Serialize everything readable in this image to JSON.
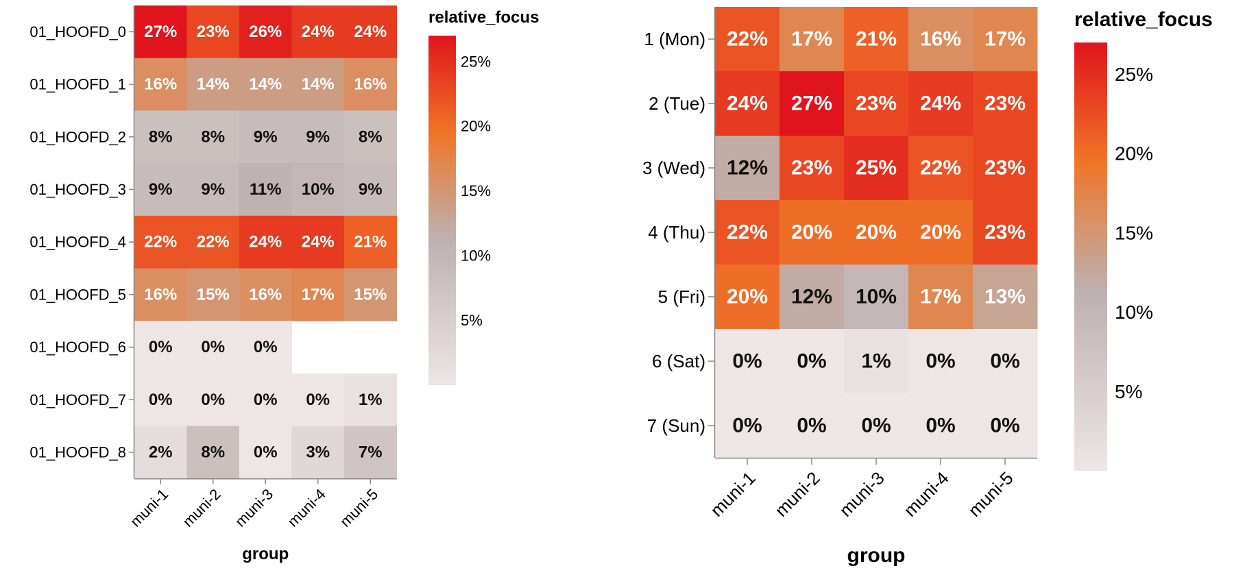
{
  "chart_data": [
    {
      "type": "heatmap",
      "xlabel": "group",
      "ylabel": "",
      "x_categories": [
        "muni-1",
        "muni-2",
        "muni-3",
        "muni-4",
        "muni-5"
      ],
      "y_categories": [
        "01_HOOFD_0",
        "01_HOOFD_1",
        "01_HOOFD_2",
        "01_HOOFD_3",
        "01_HOOFD_4",
        "01_HOOFD_5",
        "01_HOOFD_6",
        "01_HOOFD_7",
        "01_HOOFD_8"
      ],
      "values": [
        [
          27,
          23,
          26,
          24,
          24
        ],
        [
          16,
          14,
          14,
          14,
          16
        ],
        [
          8,
          8,
          9,
          9,
          8
        ],
        [
          9,
          9,
          11,
          10,
          9
        ],
        [
          22,
          22,
          24,
          24,
          21
        ],
        [
          16,
          15,
          16,
          17,
          15
        ],
        [
          0,
          0,
          0,
          null,
          null
        ],
        [
          0,
          0,
          0,
          0,
          1
        ],
        [
          2,
          8,
          0,
          3,
          7
        ]
      ],
      "value_format": "percent",
      "legend": {
        "title": "relative_focus",
        "ticks": [
          "5%",
          "10%",
          "15%",
          "20%",
          "25%"
        ],
        "tick_values": [
          5,
          10,
          15,
          20,
          25
        ],
        "domain": [
          0,
          27
        ],
        "placement": "right"
      },
      "colors": {
        "low": "#ede6e4",
        "mid": "#bcb1b0",
        "high_mid": "#f07528",
        "high": "#e0141c"
      }
    },
    {
      "type": "heatmap",
      "xlabel": "group",
      "ylabel": "",
      "x_categories": [
        "muni-1",
        "muni-2",
        "muni-3",
        "muni-4",
        "muni-5"
      ],
      "y_categories": [
        "1 (Mon)",
        "2 (Tue)",
        "3 (Wed)",
        "4 (Thu)",
        "5 (Fri)",
        "6 (Sat)",
        "7 (Sun)"
      ],
      "values": [
        [
          22,
          17,
          21,
          16,
          17
        ],
        [
          24,
          27,
          23,
          24,
          23
        ],
        [
          12,
          23,
          25,
          22,
          23
        ],
        [
          22,
          20,
          20,
          20,
          23
        ],
        [
          20,
          12,
          10,
          17,
          13
        ],
        [
          0,
          0,
          1,
          0,
          0
        ],
        [
          0,
          0,
          0,
          0,
          0
        ]
      ],
      "value_format": "percent",
      "legend": {
        "title": "relative_focus",
        "ticks": [
          "5%",
          "10%",
          "15%",
          "20%",
          "25%"
        ],
        "tick_values": [
          5,
          10,
          15,
          20,
          25
        ],
        "domain": [
          0,
          27
        ],
        "placement": "right"
      },
      "colors": {
        "low": "#ede6e4",
        "mid": "#bcb1b0",
        "high_mid": "#f07528",
        "high": "#e0141c"
      }
    }
  ]
}
